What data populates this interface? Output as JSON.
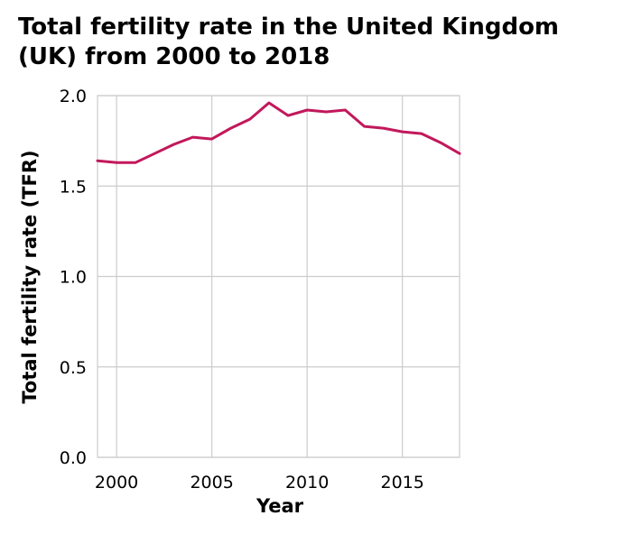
{
  "chart_data": {
    "type": "line",
    "title": "Total fertility rate in the United Kingdom (UK) from 2000 to 2018",
    "xlabel": "Year",
    "ylabel": "Total fertility rate (TFR)",
    "xlim": [
      1999,
      2018
    ],
    "ylim": [
      0,
      2.0
    ],
    "x_ticks": [
      2000,
      2005,
      2010,
      2015
    ],
    "x_tick_labels": [
      "2000",
      "2005",
      "2010",
      "2015"
    ],
    "y_ticks": [
      0,
      0.5,
      1.0,
      1.5,
      2.0
    ],
    "y_tick_labels": [
      "0.0",
      "0.5",
      "1.0",
      "1.5",
      "2.0"
    ],
    "grid": true,
    "series": [
      {
        "color": "#c2185b",
        "x": [
          1999,
          2000,
          2001,
          2002,
          2003,
          2004,
          2005,
          2006,
          2007,
          2008,
          2009,
          2010,
          2011,
          2012,
          2013,
          2014,
          2015,
          2016,
          2017,
          2018
        ],
        "values": [
          1.64,
          1.63,
          1.63,
          1.68,
          1.73,
          1.77,
          1.76,
          1.82,
          1.87,
          1.96,
          1.89,
          1.92,
          1.91,
          1.92,
          1.83,
          1.82,
          1.8,
          1.79,
          1.74,
          1.68
        ]
      }
    ]
  }
}
